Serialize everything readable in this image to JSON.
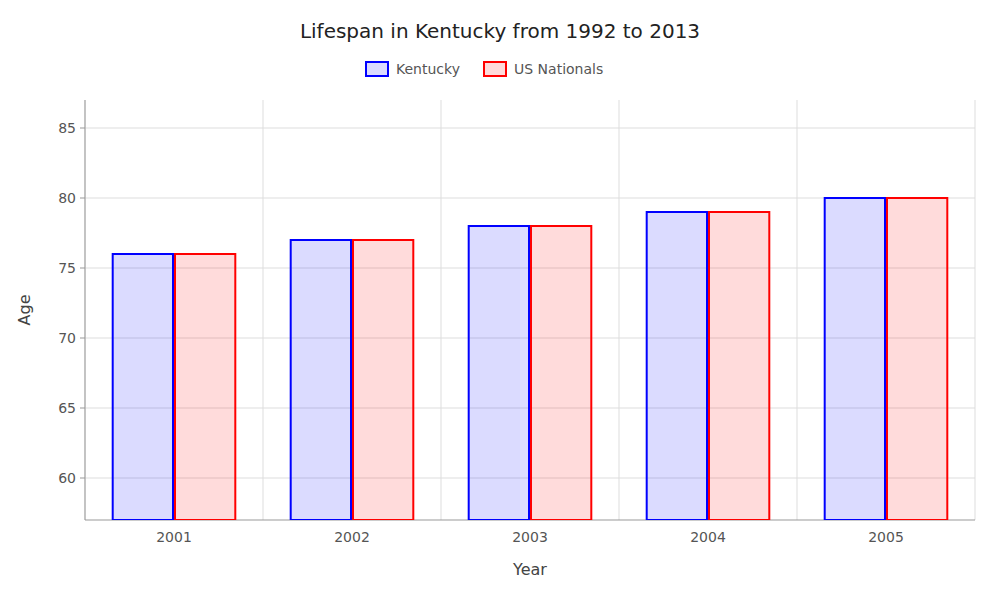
{
  "chart_data": {
    "type": "bar",
    "title": "Lifespan in Kentucky from 1992 to 2013",
    "xlabel": "Year",
    "ylabel": "Age",
    "categories": [
      "2001",
      "2002",
      "2003",
      "2004",
      "2005"
    ],
    "series": [
      {
        "name": "Kentucky",
        "color": "#0000ff",
        "values": [
          76,
          77,
          78,
          79,
          80
        ]
      },
      {
        "name": "US Nationals",
        "color": "#ff0000",
        "values": [
          76,
          77,
          78,
          79,
          80
        ]
      }
    ],
    "ylim": [
      57,
      87
    ],
    "yticks": [
      60,
      65,
      70,
      75,
      80,
      85
    ],
    "grid": true,
    "legend": "top"
  }
}
